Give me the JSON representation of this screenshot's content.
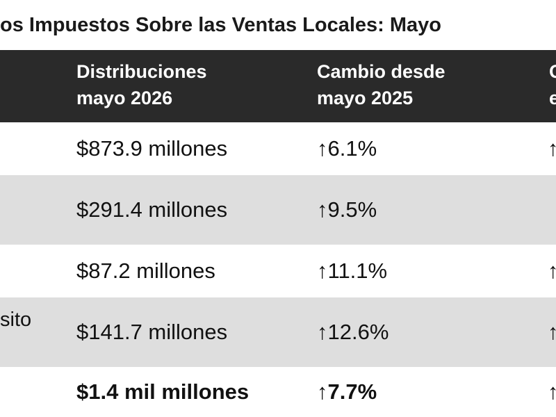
{
  "title": "os Impuestos Sobre las Ventas Locales: Mayo",
  "table": {
    "header": [
      "Distribuciones\nmayo 2026",
      "Cambio desde\nmayo 2025",
      "C\ne"
    ],
    "rows": [
      {
        "distribution": "$873.9 millones",
        "change": "↑6.1%",
        "next": "↑"
      },
      {
        "distribution": "$291.4 millones",
        "change": "↑9.5%"
      },
      {
        "distribution": "$87.2 millones",
        "change": "↑11.1%",
        "next": "↑"
      },
      {
        "label": "sito",
        "distribution": "$141.7 millones",
        "change": "↑12.6%",
        "next": "↑"
      },
      {
        "distribution": "$1.4 mil millones",
        "change": "↑7.7%",
        "next": "↑"
      }
    ]
  }
}
